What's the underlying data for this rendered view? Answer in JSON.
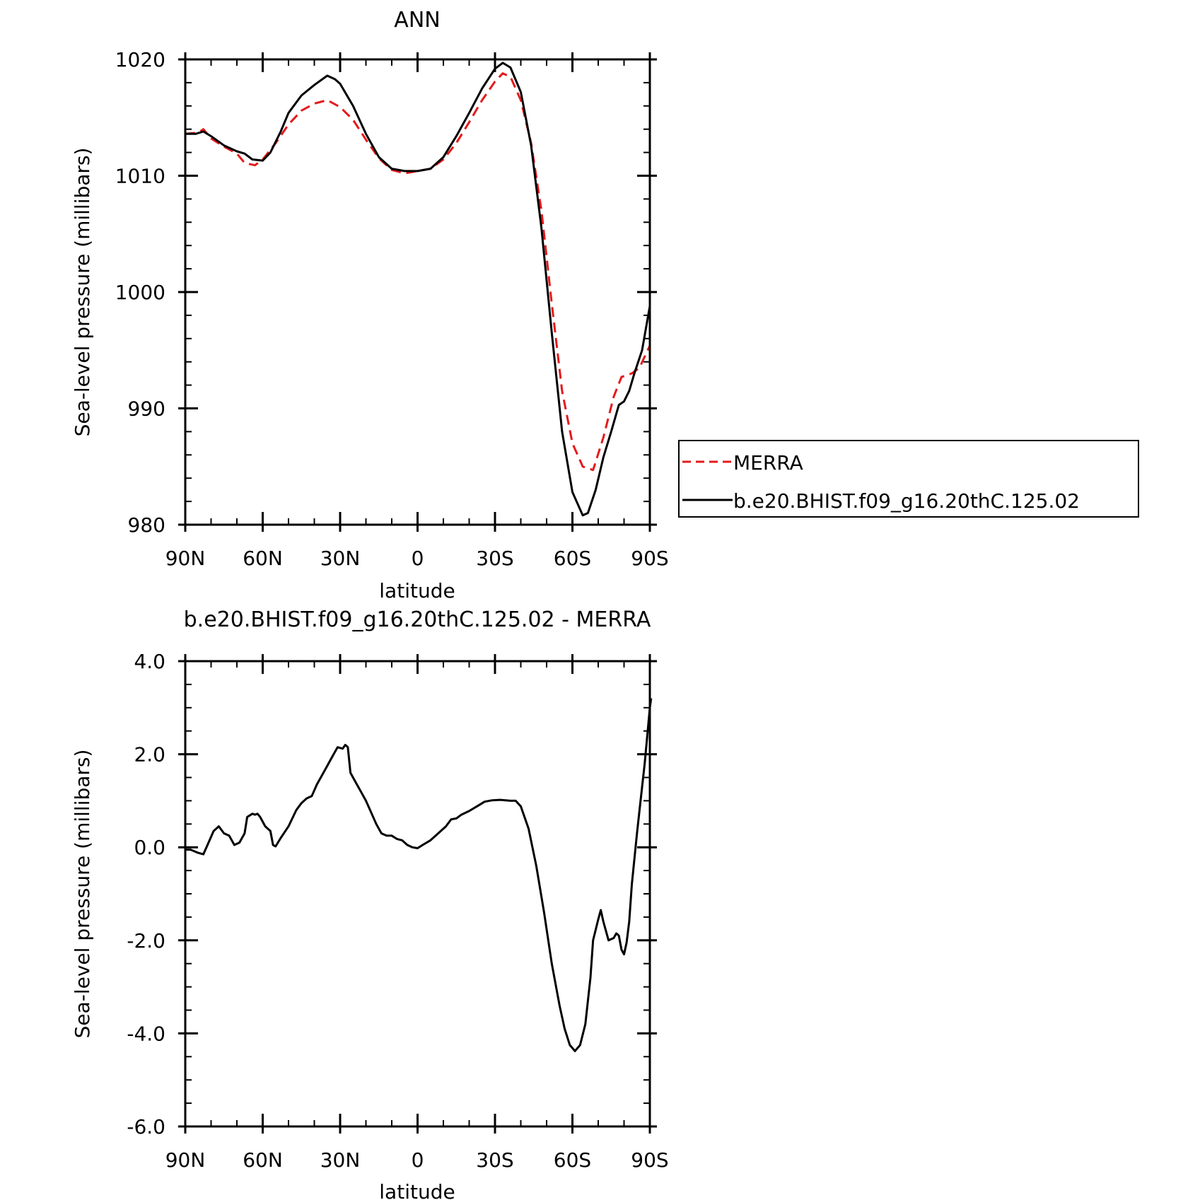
{
  "chart_data": [
    {
      "type": "line",
      "title": "ANN",
      "xlabel": "latitude",
      "ylabel": "Sea-level pressure (millibars)",
      "xlim": [
        90,
        -90
      ],
      "ylim": [
        980,
        1020
      ],
      "x_ticks": [
        {
          "value": 90,
          "label": "90N"
        },
        {
          "value": 60,
          "label": "60N"
        },
        {
          "value": 30,
          "label": "30N"
        },
        {
          "value": 0,
          "label": "0"
        },
        {
          "value": -30,
          "label": "30S"
        },
        {
          "value": -60,
          "label": "60S"
        },
        {
          "value": -90,
          "label": "90S"
        }
      ],
      "y_ticks": [
        {
          "value": 1020,
          "label": "1020"
        },
        {
          "value": 1010,
          "label": "1010"
        },
        {
          "value": 1000,
          "label": "1000"
        },
        {
          "value": 990,
          "label": "990"
        },
        {
          "value": 980,
          "label": "980"
        }
      ],
      "legend_position": "right",
      "series": [
        {
          "name": "MERRA",
          "color": "#e41a1c",
          "dash": "dashed",
          "points": [
            [
              90,
              1013.6
            ],
            [
              85,
              1013.7
            ],
            [
              83,
              1014.0
            ],
            [
              80,
              1013.2
            ],
            [
              75,
              1012.5
            ],
            [
              70,
              1011.9
            ],
            [
              67,
              1011.1
            ],
            [
              63,
              1010.9
            ],
            [
              60,
              1011.4
            ],
            [
              55,
              1012.8
            ],
            [
              50,
              1014.4
            ],
            [
              45,
              1015.6
            ],
            [
              40,
              1016.2
            ],
            [
              35,
              1016.5
            ],
            [
              30,
              1015.9
            ],
            [
              25,
              1014.8
            ],
            [
              20,
              1013.1
            ],
            [
              15,
              1011.5
            ],
            [
              10,
              1010.5
            ],
            [
              5,
              1010.2
            ],
            [
              0,
              1010.4
            ],
            [
              -5,
              1010.6
            ],
            [
              -10,
              1011.4
            ],
            [
              -15,
              1012.8
            ],
            [
              -20,
              1014.6
            ],
            [
              -25,
              1016.5
            ],
            [
              -30,
              1018.1
            ],
            [
              -33,
              1018.8
            ],
            [
              -36,
              1018.5
            ],
            [
              -40,
              1016.5
            ],
            [
              -44,
              1012.8
            ],
            [
              -48,
              1007.0
            ],
            [
              -52,
              999.0
            ],
            [
              -56,
              991.5
            ],
            [
              -60,
              987.0
            ],
            [
              -64,
              985.0
            ],
            [
              -68,
              984.7
            ],
            [
              -72,
              987.5
            ],
            [
              -76,
              991.0
            ],
            [
              -79,
              992.7
            ],
            [
              -83,
              993.0
            ],
            [
              -86,
              993.5
            ],
            [
              -90,
              995.4
            ]
          ]
        },
        {
          "name": "b.e20.BHIST.f09_g16.20thC.125.02",
          "color": "#000000",
          "dash": "solid",
          "points": [
            [
              90,
              1013.6
            ],
            [
              86,
              1013.6
            ],
            [
              83,
              1013.8
            ],
            [
              80,
              1013.4
            ],
            [
              75,
              1012.6
            ],
            [
              70,
              1012.1
            ],
            [
              67,
              1011.9
            ],
            [
              64,
              1011.4
            ],
            [
              60,
              1011.3
            ],
            [
              57,
              1012.0
            ],
            [
              53,
              1013.8
            ],
            [
              50,
              1015.4
            ],
            [
              45,
              1016.9
            ],
            [
              40,
              1017.8
            ],
            [
              35,
              1018.6
            ],
            [
              32,
              1018.3
            ],
            [
              30,
              1017.9
            ],
            [
              25,
              1016.0
            ],
            [
              20,
              1013.6
            ],
            [
              15,
              1011.6
            ],
            [
              10,
              1010.6
            ],
            [
              5,
              1010.4
            ],
            [
              0,
              1010.4
            ],
            [
              -5,
              1010.6
            ],
            [
              -10,
              1011.6
            ],
            [
              -15,
              1013.4
            ],
            [
              -20,
              1015.4
            ],
            [
              -25,
              1017.5
            ],
            [
              -30,
              1019.2
            ],
            [
              -33,
              1019.7
            ],
            [
              -36,
              1019.3
            ],
            [
              -40,
              1017.2
            ],
            [
              -44,
              1012.6
            ],
            [
              -48,
              1005.5
            ],
            [
              -52,
              996.5
            ],
            [
              -56,
              988.0
            ],
            [
              -60,
              982.8
            ],
            [
              -64,
              980.8
            ],
            [
              -66,
              981.0
            ],
            [
              -69,
              983.0
            ],
            [
              -72,
              985.8
            ],
            [
              -75,
              988.0
            ],
            [
              -78,
              990.3
            ],
            [
              -80,
              990.6
            ],
            [
              -82,
              991.5
            ],
            [
              -84,
              993.0
            ],
            [
              -87,
              995.0
            ],
            [
              -90,
              998.8
            ]
          ]
        }
      ]
    },
    {
      "type": "line",
      "title": "b.e20.BHIST.f09_g16.20thC.125.02 - MERRA",
      "xlabel": "latitude",
      "ylabel": "Sea-level pressure (millibars)",
      "xlim": [
        90,
        -90
      ],
      "ylim": [
        -6.0,
        4.0
      ],
      "x_ticks": [
        {
          "value": 90,
          "label": "90N"
        },
        {
          "value": 60,
          "label": "60N"
        },
        {
          "value": 30,
          "label": "30N"
        },
        {
          "value": 0,
          "label": "0"
        },
        {
          "value": -30,
          "label": "30S"
        },
        {
          "value": -60,
          "label": "60S"
        },
        {
          "value": -90,
          "label": "90S"
        }
      ],
      "y_ticks": [
        {
          "value": 4.0,
          "label": "4.0"
        },
        {
          "value": 2.0,
          "label": "2.0"
        },
        {
          "value": 0.0,
          "label": "0.0"
        },
        {
          "value": -2.0,
          "label": "-2.0"
        },
        {
          "value": -4.0,
          "label": "-4.0"
        },
        {
          "value": -6.0,
          "label": "-6.0"
        }
      ],
      "series": [
        {
          "color": "#000000",
          "dash": "solid",
          "points": [
            [
              90,
              -0.05
            ],
            [
              88,
              -0.05
            ],
            [
              85,
              -0.12
            ],
            [
              83,
              -0.15
            ],
            [
              81,
              0.1
            ],
            [
              79,
              0.35
            ],
            [
              77,
              0.45
            ],
            [
              75,
              0.3
            ],
            [
              73,
              0.25
            ],
            [
              71,
              0.05
            ],
            [
              69,
              0.1
            ],
            [
              67,
              0.3
            ],
            [
              66,
              0.65
            ],
            [
              64,
              0.72
            ],
            [
              63,
              0.7
            ],
            [
              62,
              0.72
            ],
            [
              61,
              0.65
            ],
            [
              59,
              0.45
            ],
            [
              57,
              0.35
            ],
            [
              56,
              0.05
            ],
            [
              55,
              0.02
            ],
            [
              53,
              0.2
            ],
            [
              50,
              0.45
            ],
            [
              47,
              0.8
            ],
            [
              45,
              0.95
            ],
            [
              43,
              1.05
            ],
            [
              41,
              1.1
            ],
            [
              39,
              1.35
            ],
            [
              37,
              1.55
            ],
            [
              35,
              1.75
            ],
            [
              33,
              1.95
            ],
            [
              31,
              2.15
            ],
            [
              29,
              2.12
            ],
            [
              28,
              2.2
            ],
            [
              27,
              2.15
            ],
            [
              26,
              1.6
            ],
            [
              24,
              1.4
            ],
            [
              22,
              1.2
            ],
            [
              20,
              1.0
            ],
            [
              18,
              0.75
            ],
            [
              16,
              0.5
            ],
            [
              14,
              0.3
            ],
            [
              12,
              0.25
            ],
            [
              10,
              0.25
            ],
            [
              8,
              0.18
            ],
            [
              6,
              0.15
            ],
            [
              4,
              0.05
            ],
            [
              2,
              0.0
            ],
            [
              0,
              -0.02
            ],
            [
              -2,
              0.05
            ],
            [
              -5,
              0.15
            ],
            [
              -8,
              0.3
            ],
            [
              -11,
              0.45
            ],
            [
              -13,
              0.6
            ],
            [
              -15,
              0.62
            ],
            [
              -17,
              0.7
            ],
            [
              -20,
              0.78
            ],
            [
              -23,
              0.88
            ],
            [
              -26,
              0.98
            ],
            [
              -29,
              1.01
            ],
            [
              -32,
              1.02
            ],
            [
              -34,
              1.01
            ],
            [
              -36,
              1.0
            ],
            [
              -38,
              1.0
            ],
            [
              -40,
              0.88
            ],
            [
              -43,
              0.4
            ],
            [
              -46,
              -0.4
            ],
            [
              -49,
              -1.4
            ],
            [
              -52,
              -2.5
            ],
            [
              -55,
              -3.4
            ],
            [
              -57,
              -3.9
            ],
            [
              -59,
              -4.25
            ],
            [
              -61,
              -4.38
            ],
            [
              -63,
              -4.25
            ],
            [
              -65,
              -3.8
            ],
            [
              -67,
              -2.8
            ],
            [
              -68,
              -2.0
            ],
            [
              -70,
              -1.55
            ],
            [
              -71,
              -1.35
            ],
            [
              -72,
              -1.6
            ],
            [
              -74,
              -2.0
            ],
            [
              -76,
              -1.95
            ],
            [
              -77,
              -1.85
            ],
            [
              -78,
              -1.9
            ],
            [
              -79,
              -2.2
            ],
            [
              -80,
              -2.3
            ],
            [
              -81,
              -2.05
            ],
            [
              -82,
              -1.6
            ],
            [
              -83,
              -0.8
            ],
            [
              -85,
              0.3
            ],
            [
              -86,
              0.8
            ],
            [
              -88,
              1.8
            ],
            [
              -90,
              3.0
            ],
            [
              -90.5,
              3.2
            ]
          ]
        }
      ]
    }
  ]
}
